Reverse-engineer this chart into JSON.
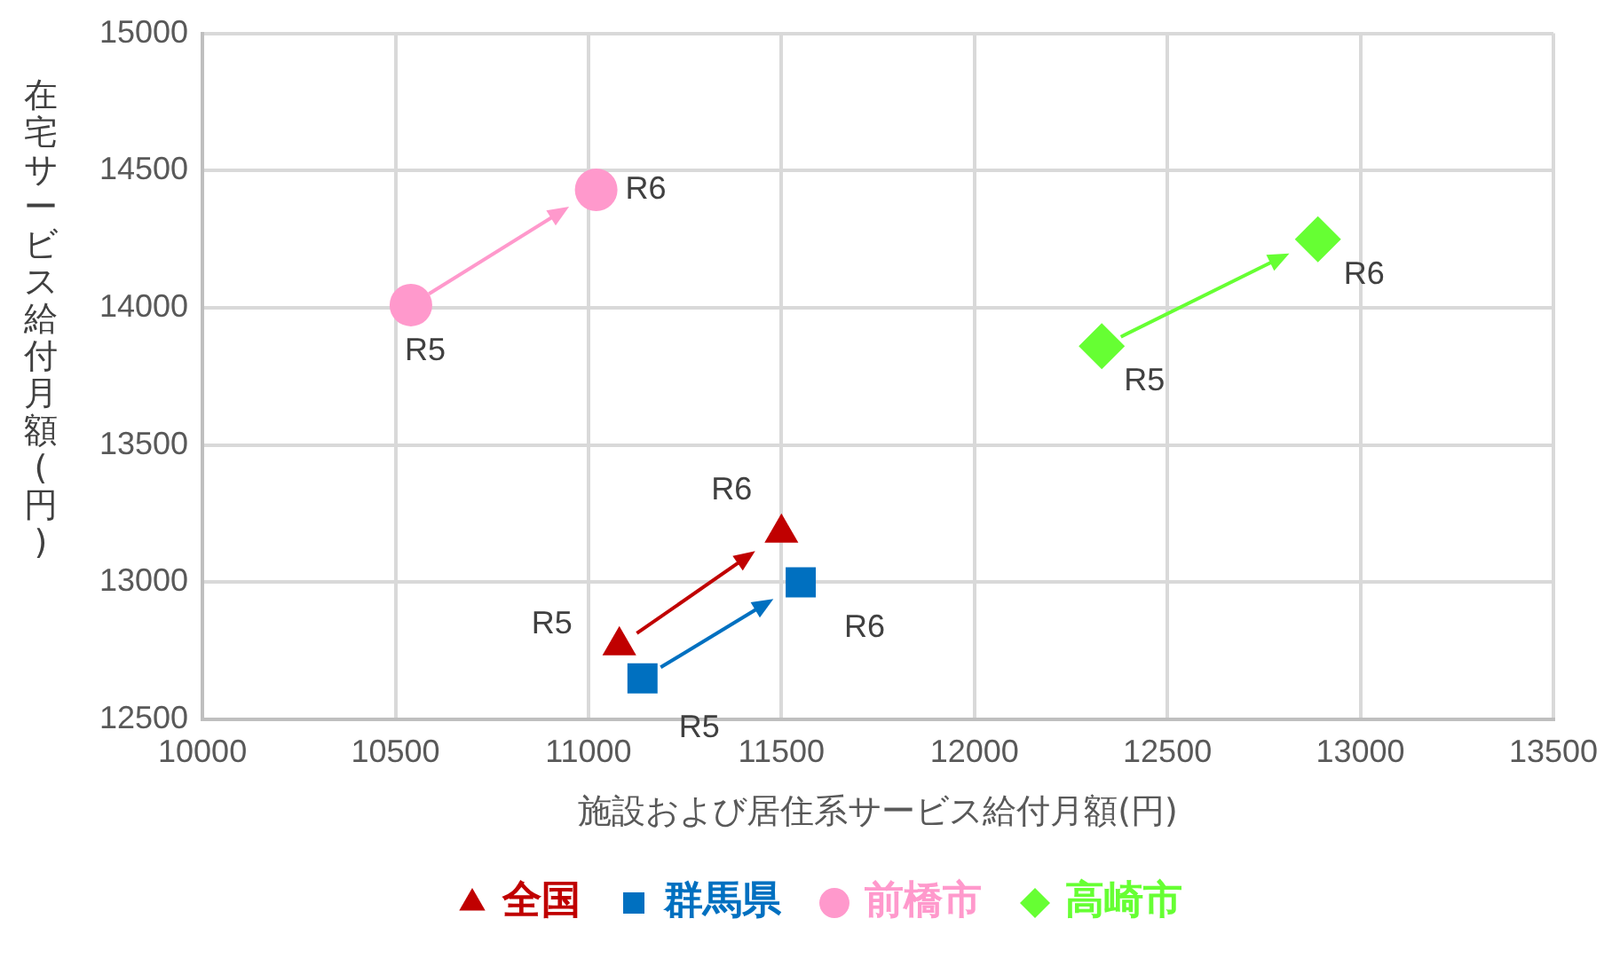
{
  "chart_data": {
    "type": "scatter",
    "xlabel": "施設および居住系サービス給付月額(円)",
    "ylabel": "在宅サービス給付月額(円)",
    "xlim": [
      10000,
      13500
    ],
    "xticks": [
      10000,
      10500,
      11000,
      11500,
      12000,
      12500,
      13000,
      13500
    ],
    "ylim": [
      12500,
      15000
    ],
    "yticks": [
      12500,
      13000,
      13500,
      14000,
      14500,
      15000
    ],
    "grid": true,
    "legend": "bottom",
    "series": [
      {
        "name": "全国",
        "color": "#c00000",
        "marker": "triangle",
        "x": [
          11080,
          11500
        ],
        "values": [
          12770,
          13180
        ],
        "value_labels": [
          "R5",
          "R6"
        ]
      },
      {
        "name": "群馬県",
        "color": "#0070c0",
        "marker": "square",
        "x": [
          11140,
          11550
        ],
        "values": [
          12650,
          13000
        ],
        "value_labels": [
          "R5",
          "R6"
        ]
      },
      {
        "name": "前橋市",
        "color": "#ff99cc",
        "marker": "circle",
        "x": [
          10540,
          11020
        ],
        "values": [
          14010,
          14430
        ],
        "value_labels": [
          "R5",
          "R6"
        ]
      },
      {
        "name": "高崎市",
        "color": "#66ff33",
        "marker": "diamond",
        "x": [
          12330,
          12890
        ],
        "values": [
          13860,
          14250
        ],
        "value_labels": [
          "R5",
          "R6"
        ]
      }
    ]
  }
}
